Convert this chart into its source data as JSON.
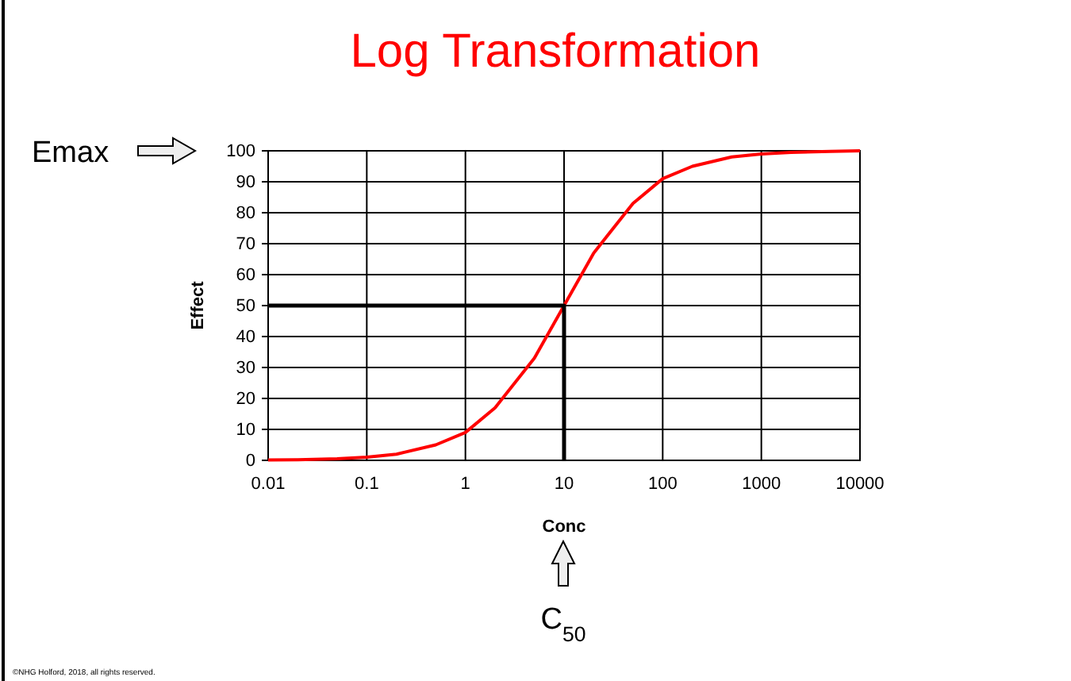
{
  "chart_data": {
    "type": "line",
    "title": "Log Transformation",
    "xlabel": "Conc",
    "ylabel": "Effect",
    "log": "x",
    "grid": true,
    "marker": "none",
    "line_style": "solid",
    "xlim": [
      0.01,
      10000
    ],
    "xticks": [
      0.01,
      0.1,
      1,
      10,
      100,
      1000,
      10000
    ],
    "ylim": [
      0,
      100
    ],
    "yticks": [
      0,
      10,
      20,
      30,
      40,
      50,
      60,
      70,
      80,
      90,
      100
    ],
    "series": [
      {
        "color": "#ff0000",
        "x": [
          0.01,
          0.02,
          0.05,
          0.1,
          0.2,
          0.5,
          1,
          2,
          5,
          10,
          20,
          50,
          100,
          200,
          500,
          1000,
          2000,
          5000,
          10000
        ],
        "values": [
          0.1,
          0.2,
          0.5,
          1,
          2,
          5,
          9,
          17,
          33,
          50,
          67,
          83,
          91,
          95,
          98,
          99,
          99.5,
          99.8,
          100
        ]
      },
      {
        "color": "#000000",
        "x": [
          0.01,
          10,
          10
        ],
        "values": [
          50,
          50,
          0
        ]
      }
    ],
    "annotations": [
      "Emax",
      "C$_{50}$",
      "©NHG Holford, 2018, all rights reserved."
    ]
  }
}
